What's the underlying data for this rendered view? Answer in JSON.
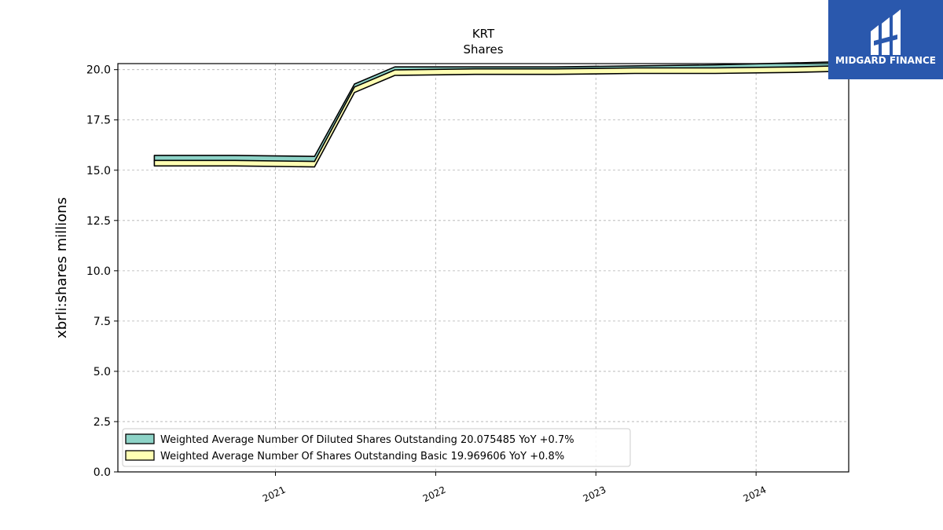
{
  "logo": {
    "text": "MIDGARD FINANCE",
    "background": "#2a58ad"
  },
  "chart_data": {
    "type": "area",
    "title": "KRT",
    "subtitle": "Shares",
    "xlabel": "",
    "ylabel": "xbrli:shares millions",
    "ylim": [
      0,
      20.3
    ],
    "yticks": [
      "0.0",
      "2.5",
      "5.0",
      "7.5",
      "10.0",
      "12.5",
      "15.0",
      "17.5",
      "20.0"
    ],
    "xticks": [
      "2021",
      "2022",
      "2023",
      "2024"
    ],
    "grid": true,
    "legend_position": "lower-left",
    "x": [
      "2020-03-31",
      "2020-09-30",
      "2021-03-31",
      "2021-06-30",
      "2021-09-30",
      "2022-03-31",
      "2022-09-30",
      "2023-03-31",
      "2023-09-30",
      "2024-03-31",
      "2024-06-30"
    ],
    "series": [
      {
        "name": "Weighted Average Number Of Diluted Shares Outstanding",
        "legend_label": "Weighted Average Number Of Diluted Shares Outstanding  20.075485 YoY +0.7%",
        "color": "#8dd3c7",
        "values": [
          15.6,
          15.6,
          15.55,
          19.15,
          20.0,
          20.0,
          20.0,
          20.05,
          20.1,
          20.2,
          20.25
        ]
      },
      {
        "name": "Weighted Average Number Of Shares Outstanding Basic",
        "legend_label": "Weighted Average Number Of Shares Outstanding Basic  19.969606 YoY +0.8%",
        "color": "#ffffb3",
        "values": [
          15.35,
          15.35,
          15.3,
          19.0,
          19.85,
          19.9,
          19.9,
          19.95,
          19.95,
          20.0,
          20.05
        ]
      }
    ]
  }
}
